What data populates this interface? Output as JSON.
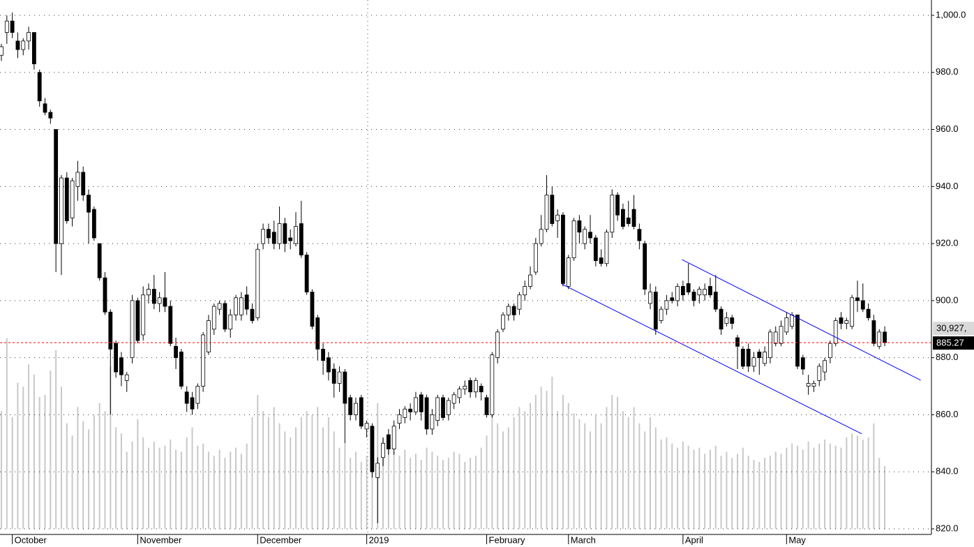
{
  "chart_data": {
    "type": "candlestick",
    "ylim": [
      820,
      1000
    ],
    "yticks": [
      {
        "value": 1000,
        "label": "1,000.0"
      },
      {
        "value": 980,
        "label": "980.0"
      },
      {
        "value": 960,
        "label": "960.0"
      },
      {
        "value": 940,
        "label": "940.0"
      },
      {
        "value": 920,
        "label": "920.0"
      },
      {
        "value": 900,
        "label": "900.0"
      },
      {
        "value": 880,
        "label": "880.0"
      },
      {
        "value": 860,
        "label": "860.0"
      },
      {
        "value": 840,
        "label": "840.0"
      },
      {
        "value": 820,
        "label": "820.0"
      }
    ],
    "xticks": [
      {
        "value": 2,
        "label": "October"
      },
      {
        "value": 25,
        "label": "November"
      },
      {
        "value": 47,
        "label": "December"
      },
      {
        "value": 67,
        "label": "2019"
      },
      {
        "value": 89,
        "label": "February"
      },
      {
        "value": 104,
        "label": "March"
      },
      {
        "value": 125,
        "label": "April"
      },
      {
        "value": 144,
        "label": "May"
      }
    ],
    "grid": true,
    "up_color": "#ffffff",
    "down_color": "#000000",
    "volume_color": "#c8c8c8",
    "price_line_color": "#ff0000",
    "volume_lim": [
      0,
      253000
    ],
    "last_volume_label": "30,927,",
    "candles": [
      [
        986,
        990,
        984,
        989
      ],
      [
        994,
        1000,
        990,
        998
      ],
      [
        998,
        1001,
        992,
        994
      ],
      [
        991,
        994,
        985,
        988
      ],
      [
        988,
        992,
        986,
        991
      ],
      [
        991,
        996,
        988,
        994
      ],
      [
        994,
        994,
        981,
        983
      ],
      [
        980,
        981,
        968,
        970
      ],
      [
        969,
        971,
        965,
        966
      ],
      [
        966,
        967,
        962,
        964
      ],
      [
        960,
        960,
        910,
        920
      ],
      [
        920,
        944,
        909,
        943
      ],
      [
        943,
        945,
        927,
        928
      ],
      [
        929,
        943,
        926,
        942
      ],
      [
        940,
        949,
        935,
        945
      ],
      [
        945,
        947,
        935,
        937
      ],
      [
        937,
        939,
        920,
        931
      ],
      [
        932,
        933,
        921,
        922
      ],
      [
        920,
        920,
        907,
        908
      ],
      [
        908,
        910,
        895,
        896
      ],
      [
        896,
        897,
        860,
        883
      ],
      [
        885,
        886,
        873,
        875
      ],
      [
        880,
        882,
        870,
        874
      ],
      [
        872,
        875,
        868,
        874
      ],
      [
        880,
        902,
        878,
        900
      ],
      [
        900,
        901,
        885,
        886
      ],
      [
        888,
        905,
        886,
        902
      ],
      [
        902,
        906,
        899,
        904
      ],
      [
        904,
        909,
        897,
        899
      ],
      [
        899,
        903,
        896,
        901
      ],
      [
        901,
        910,
        896,
        898
      ],
      [
        898,
        900,
        884,
        885
      ],
      [
        884,
        887,
        876,
        880
      ],
      [
        882,
        883,
        869,
        870
      ],
      [
        868,
        870,
        861,
        864
      ],
      [
        866,
        868,
        860,
        862
      ],
      [
        864,
        871,
        862,
        870
      ],
      [
        870,
        889,
        868,
        888
      ],
      [
        882,
        895,
        881,
        893
      ],
      [
        890,
        899,
        888,
        898
      ],
      [
        897,
        900,
        895,
        899
      ],
      [
        899,
        900,
        889,
        890
      ],
      [
        890,
        897,
        887,
        895
      ],
      [
        895,
        902,
        893,
        901
      ],
      [
        895,
        903,
        893,
        901
      ],
      [
        902,
        905,
        895,
        897
      ],
      [
        897,
        899,
        892,
        893
      ],
      [
        894,
        920,
        893,
        918
      ],
      [
        920,
        927,
        918,
        925
      ],
      [
        925,
        927,
        920,
        922
      ],
      [
        924,
        928,
        918,
        920
      ],
      [
        920,
        933,
        918,
        927
      ],
      [
        927,
        929,
        917,
        920
      ],
      [
        922,
        925,
        918,
        921
      ],
      [
        920,
        931,
        919,
        926
      ],
      [
        927,
        935,
        915,
        916
      ],
      [
        916,
        917,
        902,
        903
      ],
      [
        903,
        904,
        890,
        891
      ],
      [
        894,
        895,
        879,
        883
      ],
      [
        883,
        885,
        874,
        879
      ],
      [
        880,
        882,
        872,
        875
      ],
      [
        876,
        878,
        866,
        871
      ],
      [
        871,
        877,
        868,
        875
      ],
      [
        875,
        876,
        850,
        864
      ],
      [
        866,
        867,
        858,
        860
      ],
      [
        860,
        866,
        858,
        864
      ],
      [
        866,
        867,
        855,
        856
      ],
      [
        855,
        858,
        852,
        857
      ],
      [
        856,
        857,
        838,
        840
      ],
      [
        838,
        845,
        822,
        843
      ],
      [
        845,
        852,
        842,
        850
      ],
      [
        853,
        855,
        846,
        848
      ],
      [
        848,
        858,
        846,
        856
      ],
      [
        857,
        862,
        855,
        860
      ],
      [
        859,
        863,
        857,
        862
      ],
      [
        862,
        864,
        858,
        861
      ],
      [
        861,
        868,
        860,
        866
      ],
      [
        867,
        868,
        858,
        861
      ],
      [
        866,
        867,
        853,
        855
      ],
      [
        855,
        862,
        853,
        860
      ],
      [
        858,
        867,
        856,
        866
      ],
      [
        866,
        867,
        858,
        859
      ],
      [
        860,
        866,
        858,
        865
      ],
      [
        864,
        868,
        862,
        867
      ],
      [
        866,
        870,
        864,
        869
      ],
      [
        869,
        872,
        867,
        870
      ],
      [
        872,
        873,
        866,
        868
      ],
      [
        868,
        873,
        866,
        872
      ],
      [
        870,
        871,
        865,
        868
      ],
      [
        866,
        867,
        859,
        860
      ],
      [
        860,
        882,
        859,
        881
      ],
      [
        880,
        890,
        878,
        889
      ],
      [
        890,
        896,
        889,
        895
      ],
      [
        895,
        899,
        893,
        898
      ],
      [
        898,
        899,
        893,
        895
      ],
      [
        897,
        903,
        895,
        902
      ],
      [
        902,
        907,
        900,
        905
      ],
      [
        905,
        912,
        904,
        909
      ],
      [
        910,
        922,
        909,
        920
      ],
      [
        920,
        930,
        919,
        925
      ],
      [
        925,
        944,
        924,
        937
      ],
      [
        937,
        940,
        926,
        927
      ],
      [
        928,
        932,
        922,
        930
      ],
      [
        930,
        931,
        905,
        906
      ],
      [
        905,
        916,
        904,
        915
      ],
      [
        915,
        929,
        914,
        928
      ],
      [
        928,
        930,
        920,
        924
      ],
      [
        920,
        926,
        918,
        925
      ],
      [
        924,
        930,
        920,
        922
      ],
      [
        922,
        923,
        912,
        914
      ],
      [
        915,
        918,
        912,
        913
      ],
      [
        913,
        925,
        912,
        924
      ],
      [
        924,
        939,
        922,
        937
      ],
      [
        937,
        938,
        928,
        930
      ],
      [
        932,
        934,
        925,
        926
      ],
      [
        929,
        935,
        926,
        927
      ],
      [
        932,
        937,
        925,
        926
      ],
      [
        925,
        927,
        918,
        921
      ],
      [
        920,
        921,
        902,
        904
      ],
      [
        899,
        906,
        897,
        903
      ],
      [
        903,
        905,
        888,
        890
      ],
      [
        893,
        898,
        892,
        897
      ],
      [
        897,
        902,
        895,
        900
      ],
      [
        901,
        903,
        899,
        900
      ],
      [
        900,
        906,
        898,
        905
      ],
      [
        905,
        907,
        900,
        902
      ],
      [
        906,
        913,
        902,
        903
      ],
      [
        903,
        904,
        898,
        900
      ],
      [
        902,
        905,
        899,
        904
      ],
      [
        902,
        906,
        900,
        904
      ],
      [
        905,
        908,
        901,
        902
      ],
      [
        903,
        909,
        896,
        897
      ],
      [
        897,
        898,
        888,
        890
      ],
      [
        892,
        896,
        891,
        894
      ],
      [
        894,
        895,
        890,
        892
      ],
      [
        887,
        888,
        876,
        884
      ],
      [
        883,
        884,
        876,
        877
      ],
      [
        883,
        885,
        875,
        877
      ],
      [
        877,
        882,
        875,
        880
      ],
      [
        882,
        883,
        874,
        880
      ],
      [
        878,
        884,
        877,
        882
      ],
      [
        880,
        890,
        878,
        889
      ],
      [
        885,
        891,
        884,
        889
      ],
      [
        885,
        893,
        884,
        891
      ],
      [
        889,
        896,
        888,
        894
      ],
      [
        891,
        896,
        890,
        895
      ],
      [
        895,
        895,
        876,
        877
      ],
      [
        880,
        881,
        874,
        876
      ],
      [
        870,
        874,
        867,
        871
      ],
      [
        870,
        872,
        868,
        871
      ],
      [
        872,
        878,
        870,
        877
      ],
      [
        875,
        880,
        872,
        879
      ],
      [
        880,
        886,
        878,
        885
      ],
      [
        885,
        894,
        884,
        893
      ],
      [
        894,
        896,
        890,
        892
      ],
      [
        892,
        894,
        890,
        893
      ],
      [
        891,
        902,
        890,
        901
      ],
      [
        901,
        907,
        896,
        900
      ],
      [
        900,
        906,
        896,
        897
      ],
      [
        897,
        899,
        893,
        894
      ],
      [
        893,
        895,
        884,
        885
      ],
      [
        884,
        890,
        883,
        889
      ],
      [
        889,
        891,
        884,
        885.27
      ]
    ],
    "volume": [
      58000,
      94000,
      55000,
      72000,
      70000,
      81000,
      76000,
      65000,
      66000,
      78000,
      88000,
      70000,
      52000,
      46000,
      60000,
      53000,
      49000,
      56000,
      62000,
      58000,
      80000,
      50000,
      47000,
      38000,
      43000,
      54000,
      45000,
      40000,
      43000,
      40000,
      41000,
      44000,
      39000,
      38000,
      45000,
      50000,
      41000,
      42000,
      38000,
      36000,
      39000,
      35000,
      38000,
      40000,
      37000,
      42000,
      55000,
      66000,
      58000,
      55000,
      60000,
      52000,
      48000,
      45000,
      50000,
      55000,
      58000,
      56000,
      60000,
      50000,
      55000,
      48000,
      40000,
      42000,
      35000,
      38000,
      33000,
      36000,
      50000,
      62000,
      45000,
      40000,
      38000,
      36000,
      39000,
      35000,
      37000,
      34000,
      40000,
      38000,
      36000,
      34000,
      35000,
      38000,
      37000,
      33000,
      35000,
      36000,
      40000,
      46000,
      58000,
      52000,
      48000,
      50000,
      55000,
      60000,
      58000,
      62000,
      66000,
      70000,
      68000,
      75000,
      58000,
      66000,
      62000,
      57000,
      54000,
      52000,
      48000,
      56000,
      52000,
      60000,
      66000,
      65000,
      58000,
      55000,
      60000,
      52000,
      48000,
      55000,
      50000,
      44000,
      45000,
      42000,
      40000,
      43000,
      41000,
      39000,
      40000,
      37000,
      39000,
      41000,
      36000,
      38000,
      35000,
      37000,
      40000,
      36000,
      34000,
      33000,
      35000,
      36000,
      38000,
      37000,
      40000,
      42000,
      41000,
      39000,
      43000,
      40000,
      42000,
      44000,
      42000,
      41000,
      40000,
      45000,
      47000,
      46000,
      44000,
      45000,
      52000,
      35000,
      30927
    ],
    "trendlines": [
      {
        "x": [
          124.8,
          168.6
        ],
        "y": [
          914.4,
          872.1
        ],
        "color": "#0000ff"
      },
      {
        "x": [
          102.8,
          157.8
        ],
        "y": [
          905.8,
          853.3
        ],
        "color": "#0000ff"
      }
    ]
  }
}
